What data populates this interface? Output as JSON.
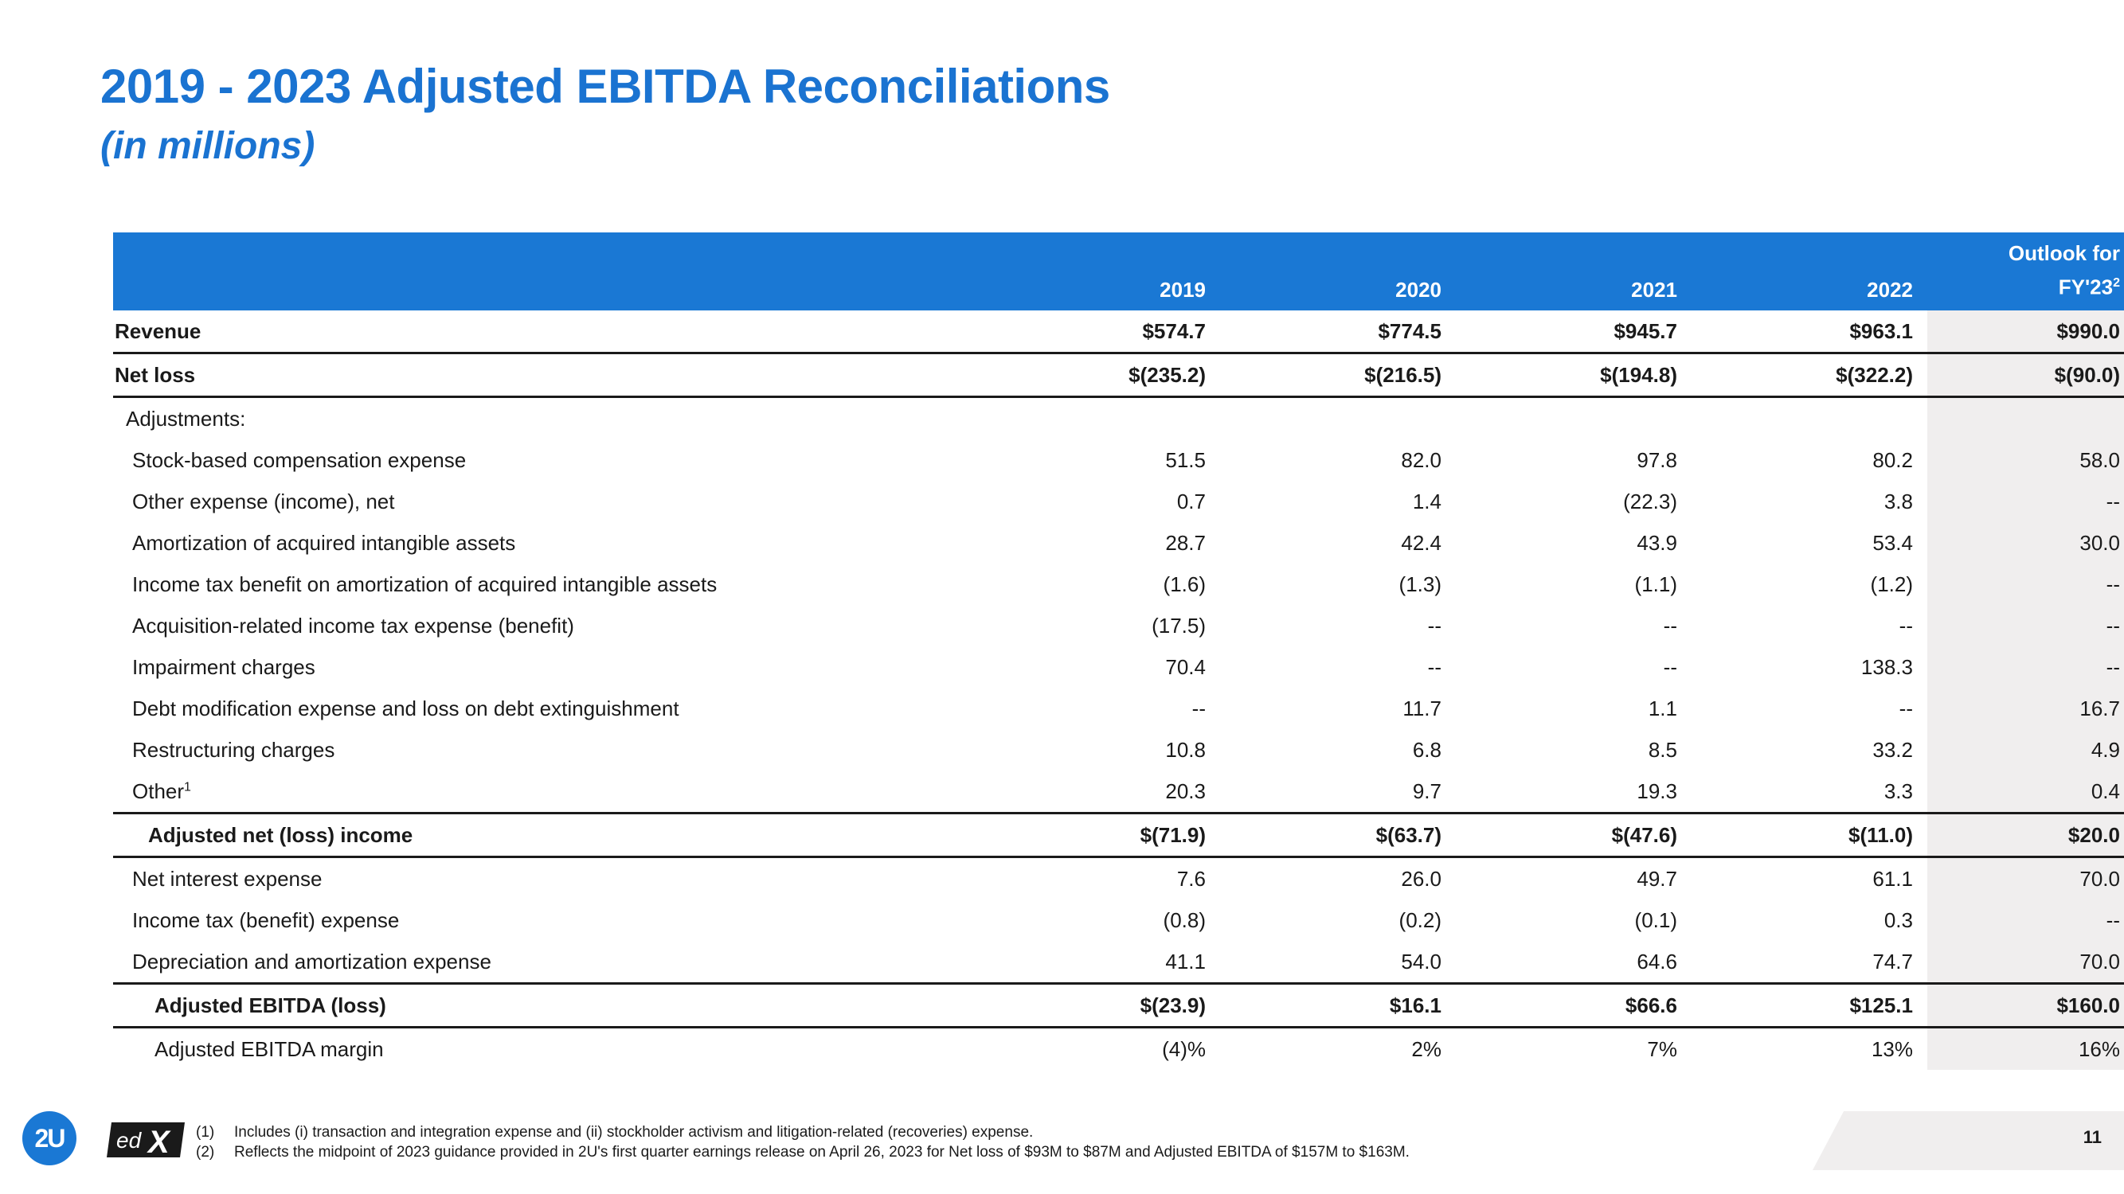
{
  "title": "2019 - 2023 Adjusted EBITDA Reconciliations",
  "subtitle": "(in millions)",
  "table": {
    "headers": [
      "2019",
      "2020",
      "2021",
      "2022"
    ],
    "outlook_header_line1": "Outlook for",
    "outlook_header_line2": "FY'23",
    "outlook_header_sup": "2",
    "rows": [
      {
        "label": "Revenue",
        "values": [
          "$574.7",
          "$774.5",
          "$945.7",
          "$963.1",
          "$990.0"
        ]
      },
      {
        "label": "Net loss",
        "values": [
          "$(235.2)",
          "$(216.5)",
          "$(194.8)",
          "$(322.2)",
          "$(90.0)"
        ]
      },
      {
        "label": "Adjustments:",
        "values": [
          "",
          "",
          "",
          "",
          ""
        ]
      },
      {
        "label": "Stock-based compensation expense",
        "values": [
          "51.5",
          "82.0",
          "97.8",
          "80.2",
          "58.0"
        ]
      },
      {
        "label": "Other expense (income), net",
        "values": [
          "0.7",
          "1.4",
          "(22.3)",
          "3.8",
          "--"
        ]
      },
      {
        "label": "Amortization of acquired intangible assets",
        "values": [
          "28.7",
          "42.4",
          "43.9",
          "53.4",
          "30.0"
        ]
      },
      {
        "label": "Income tax benefit on amortization of acquired intangible assets",
        "values": [
          "(1.6)",
          "(1.3)",
          "(1.1)",
          "(1.2)",
          "--"
        ]
      },
      {
        "label": "Acquisition-related income tax expense (benefit)",
        "values": [
          "(17.5)",
          "--",
          "--",
          "--",
          "--"
        ]
      },
      {
        "label": "Impairment charges",
        "values": [
          "70.4",
          "--",
          "--",
          "138.3",
          "--"
        ]
      },
      {
        "label": "Debt modification expense and loss on debt extinguishment",
        "values": [
          "--",
          "11.7",
          "1.1",
          "--",
          "16.7"
        ]
      },
      {
        "label": "Restructuring charges",
        "values": [
          "10.8",
          "6.8",
          "8.5",
          "33.2",
          "4.9"
        ]
      },
      {
        "label": "Other",
        "label_sup": "1",
        "values": [
          "20.3",
          "9.7",
          "19.3",
          "3.3",
          "0.4"
        ]
      },
      {
        "label": "Adjusted net (loss) income",
        "values": [
          "$(71.9)",
          "$(63.7)",
          "$(47.6)",
          "$(11.0)",
          "$20.0"
        ]
      },
      {
        "label": "Net interest expense",
        "values": [
          "7.6",
          "26.0",
          "49.7",
          "61.1",
          "70.0"
        ]
      },
      {
        "label": "Income tax (benefit) expense",
        "values": [
          "(0.8)",
          "(0.2)",
          "(0.1)",
          "0.3",
          "--"
        ]
      },
      {
        "label": "Depreciation and amortization expense",
        "values": [
          "41.1",
          "54.0",
          "64.6",
          "74.7",
          "70.0"
        ]
      },
      {
        "label": "Adjusted EBITDA (loss)",
        "values": [
          "$(23.9)",
          "$16.1",
          "$66.6",
          "$125.1",
          "$160.0"
        ]
      },
      {
        "label": "Adjusted EBITDA margin",
        "values": [
          "(4)%",
          "2%",
          "7%",
          "13%",
          "16%"
        ]
      }
    ]
  },
  "logos": {
    "twou": "2U",
    "edx": "edX"
  },
  "footnotes": [
    {
      "num": "(1)",
      "text": "Includes (i) transaction and integration expense and (ii) stockholder activism and litigation-related (recoveries) expense."
    },
    {
      "num": "(2)",
      "text": "Reflects the midpoint of 2023 guidance provided in 2U's first quarter earnings release on April 26, 2023 for Net loss of $93M to $87M and Adjusted EBITDA of $157M to $163M."
    }
  ],
  "page_number": "11",
  "colors": {
    "brand_blue": "#1a78d4",
    "title_blue": "#1a73d1",
    "outlook_bg": "#f0eeee"
  }
}
